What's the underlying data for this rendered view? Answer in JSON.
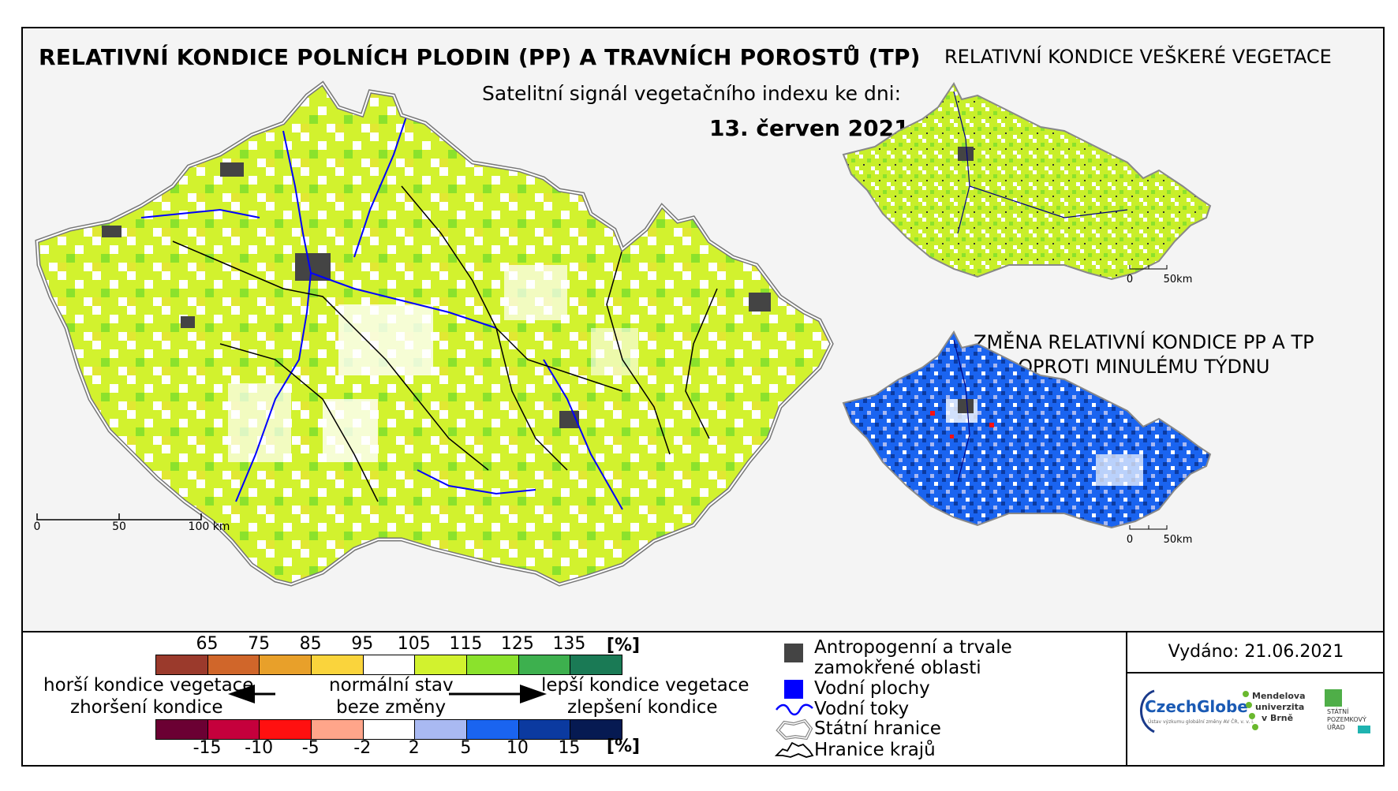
{
  "titles": {
    "main": "RELATIVNÍ KONDICE POLNÍCH PLODIN (PP) A TRAVNÍCH POROSTŮ (TP)",
    "subtitle": "Satelitní signál vegetačního indexu ke dni:",
    "date": "13. červen 2021",
    "vegetation_inset": "RELATIVNÍ KONDICE VEŠKERÉ VEGETACE",
    "change_inset_line1": "ZMĚNA RELATIVNÍ KONDICE PP A TP",
    "change_inset_line2": "OPROTI MINULÉMU TÝDNU"
  },
  "scalebars": {
    "main": [
      "0",
      "50",
      "100 km"
    ],
    "vegetation_inset": [
      "0",
      "50km"
    ],
    "change_inset": [
      "0",
      "50km"
    ]
  },
  "condition_scale": {
    "unit": "[%]",
    "ticks": [
      "65",
      "75",
      "85",
      "95",
      "105",
      "115",
      "125",
      "135"
    ],
    "colors": [
      "#9b3a2c",
      "#d0662a",
      "#e8a02a",
      "#fad43c",
      "#ffffff",
      "#d2f22e",
      "#8be22c",
      "#3db04e",
      "#1a7a55"
    ]
  },
  "change_scale": {
    "unit": "[%]",
    "ticks": [
      "-15",
      "-10",
      "-5",
      "-2",
      "2",
      "5",
      "10",
      "15"
    ],
    "colors": [
      "#6b0033",
      "#c5003c",
      "#ff1010",
      "#ffa58a",
      "#ffffff",
      "#a9b9f2",
      "#1a64f0",
      "#0b3aa0",
      "#061a52"
    ]
  },
  "arrows": {
    "left_top": "horší kondice vegetace",
    "left_bottom": "zhoršení kondice",
    "center_top": "normální stav",
    "center_bottom": "beze změny",
    "right_top": "lepší kondice vegetace",
    "right_bottom": "zlepšení kondice"
  },
  "map_legend": [
    {
      "label": "Antropogenní a trvale zamokřené oblasti",
      "line1": "Antropogenní a trvale",
      "line2": "zamokřené oblasti",
      "symbol": "gray-square",
      "color": "#444444"
    },
    {
      "label": "Vodní plochy",
      "symbol": "blue-square",
      "color": "#0000ff"
    },
    {
      "label": "Vodní toky",
      "symbol": "river-line",
      "color": "#0000ff"
    },
    {
      "label": "Státní hranice",
      "symbol": "state-border",
      "color": "#666666"
    },
    {
      "label": "Hranice krajů",
      "symbol": "region-border",
      "color": "#000000"
    }
  ],
  "issued": "Vydáno: 21.06.2021",
  "logos": {
    "czechglobe": "CzechGlobe",
    "czechglobe_sub": "Ústav výzkumu globální změny AV ČR, v. v. i.",
    "mendelu_1": "Mendelova",
    "mendelu_2": "univerzita",
    "mendelu_3": "v Brně",
    "spu_1": "STÁTNÍ",
    "spu_2": "POZEMKOVÝ",
    "spu_3": "ÚŘAD"
  },
  "colors": {
    "condition_normal": "#ffffff",
    "condition_good": "#d2f22e",
    "condition_better": "#8be22c",
    "change_improve": "#1a64f0",
    "change_strong": "#0b3aa0",
    "antropogenic": "#444444",
    "water": "#0000ff"
  }
}
